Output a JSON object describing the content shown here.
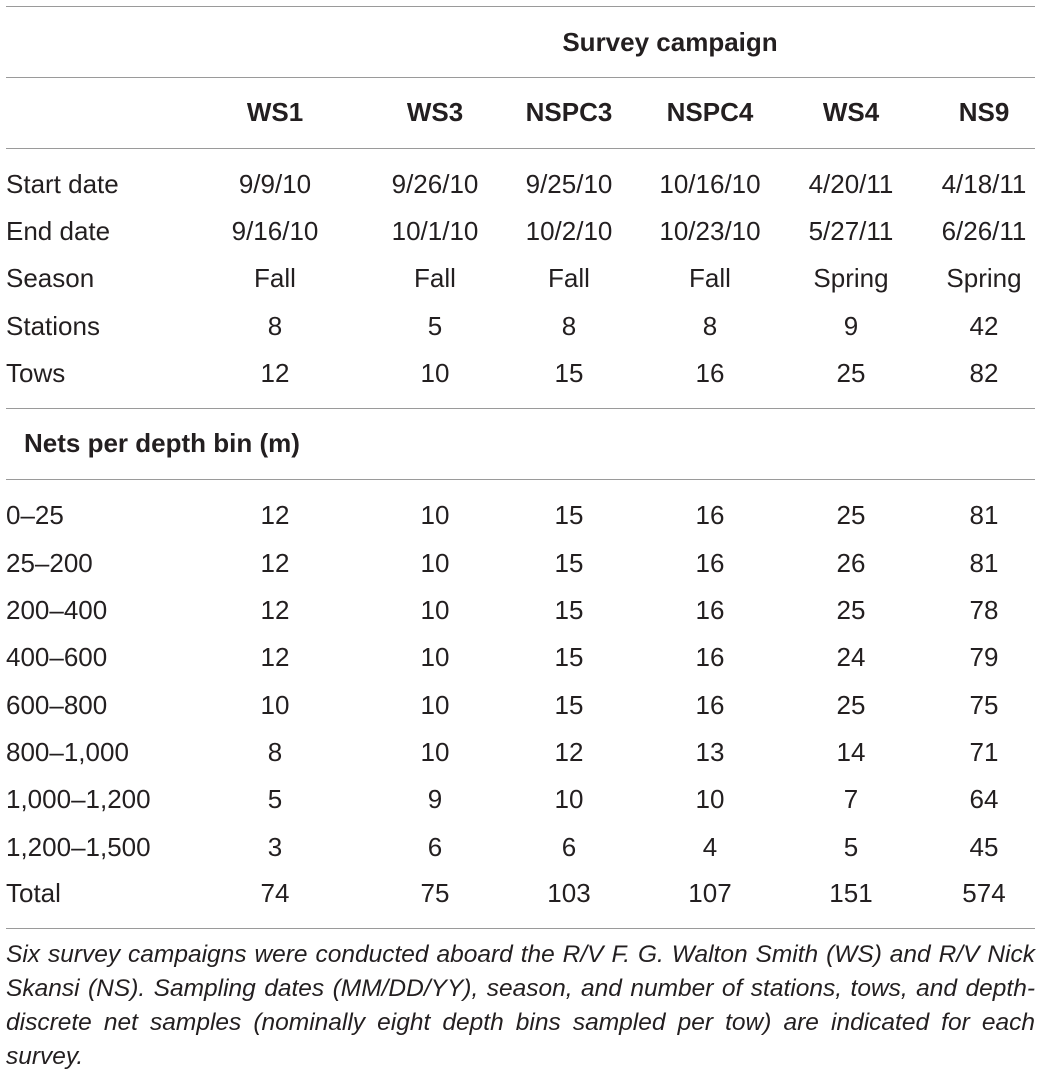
{
  "header": {
    "campaign_title": "Survey campaign",
    "campaigns": [
      "WS1",
      "WS3",
      "NSPC3",
      "NSPC4",
      "WS4",
      "NS9"
    ]
  },
  "survey_rows": [
    {
      "label": "Start date",
      "values": [
        "9/9/10",
        "9/26/10",
        "9/25/10",
        "10/16/10",
        "4/20/11",
        "4/18/11"
      ]
    },
    {
      "label": "End date",
      "values": [
        "9/16/10",
        "10/1/10",
        "10/2/10",
        "10/23/10",
        "5/27/11",
        "6/26/11"
      ]
    },
    {
      "label": "Season",
      "values": [
        "Fall",
        "Fall",
        "Fall",
        "Fall",
        "Spring",
        "Spring"
      ]
    },
    {
      "label": "Stations",
      "values": [
        "8",
        "5",
        "8",
        "8",
        "9",
        "42"
      ]
    },
    {
      "label": "Tows",
      "values": [
        "12",
        "10",
        "15",
        "16",
        "25",
        "82"
      ]
    }
  ],
  "depth_section": {
    "title": "Nets per depth bin (m)",
    "rows": [
      {
        "label": "0–25",
        "values": [
          "12",
          "10",
          "15",
          "16",
          "25",
          "81"
        ]
      },
      {
        "label": "25–200",
        "values": [
          "12",
          "10",
          "15",
          "16",
          "26",
          "81"
        ]
      },
      {
        "label": "200–400",
        "values": [
          "12",
          "10",
          "15",
          "16",
          "25",
          "78"
        ]
      },
      {
        "label": "400–600",
        "values": [
          "12",
          "10",
          "15",
          "16",
          "24",
          "79"
        ]
      },
      {
        "label": "600–800",
        "values": [
          "10",
          "10",
          "15",
          "16",
          "25",
          "75"
        ]
      },
      {
        "label": "800–1,000",
        "values": [
          "8",
          "10",
          "12",
          "13",
          "14",
          "71"
        ]
      },
      {
        "label": "1,000–1,200",
        "values": [
          "5",
          "9",
          "10",
          "10",
          "7",
          "64"
        ]
      },
      {
        "label": "1,200–1,500",
        "values": [
          "3",
          "6",
          "6",
          "4",
          "5",
          "45"
        ]
      },
      {
        "label": "Total",
        "values": [
          "74",
          "75",
          "103",
          "107",
          "151",
          "574"
        ]
      }
    ]
  },
  "footnote": "Six survey campaigns were conducted aboard the R/V F. G. Walton Smith (WS) and R/V Nick Skansi (NS). Sampling dates (MM/DD/YY), season, and number of stations, tows, and depth-discrete net samples (nominally eight depth bins sampled per tow) are indicated for each survey."
}
